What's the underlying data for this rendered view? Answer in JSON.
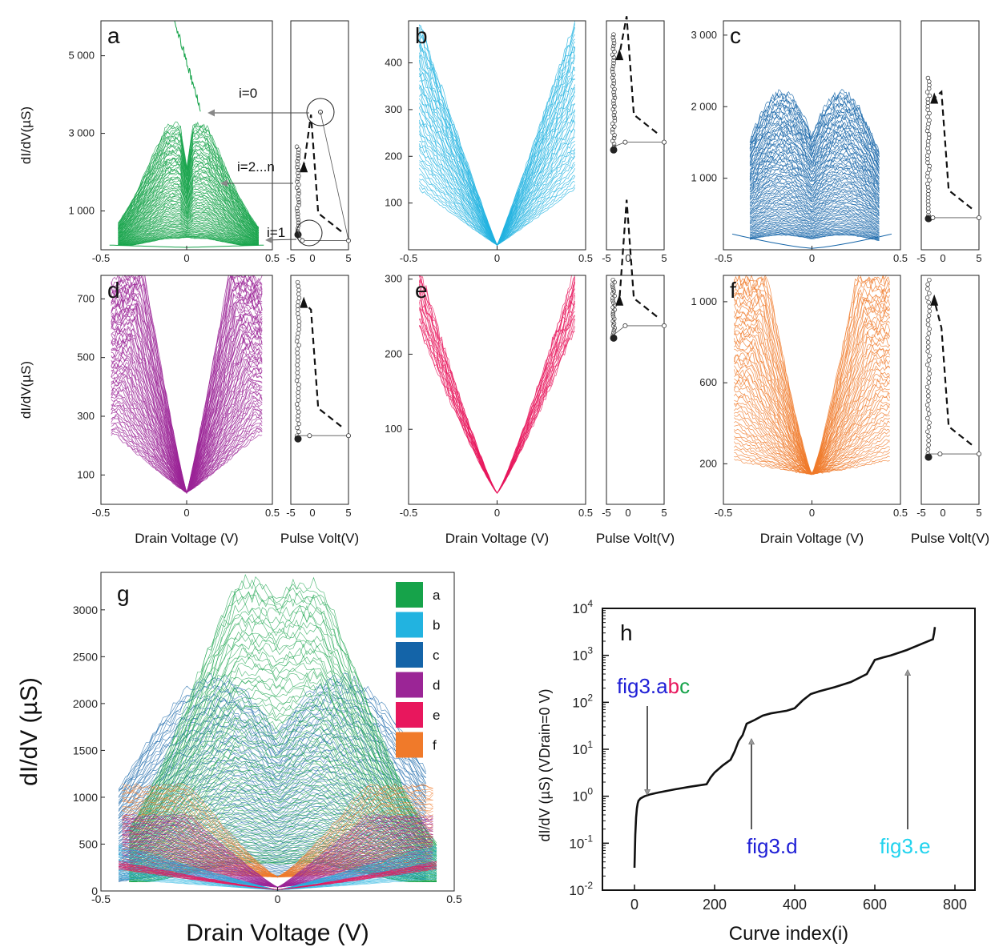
{
  "chart_data": [
    {
      "id": "a",
      "type": "line",
      "panel_label": "a",
      "color": "#16a34a",
      "xlim": [
        -0.5,
        0.5
      ],
      "ylim": [
        0,
        5900
      ],
      "xticks": [
        "-0.5",
        "0",
        "0.5"
      ],
      "yticks": [
        "1 000",
        "3 000",
        "5 000"
      ],
      "ylabel": "dI/dV(µS)",
      "xlabel": "",
      "series_summary": {
        "curves": "i=1 ... n",
        "peak_y": 3300,
        "i0_trace_y": [
          5900,
          3600
        ]
      },
      "annotations": [
        "i=0",
        "i=2...n",
        "i=1"
      ],
      "inset": {
        "xlim": [
          -3,
          5
        ],
        "xticks": [
          "-5",
          "0",
          "5"
        ],
        "xlabel": ""
      }
    },
    {
      "id": "b",
      "type": "line",
      "panel_label": "b",
      "color": "#22b3e0",
      "xlim": [
        -0.5,
        0.5
      ],
      "ylim": [
        0,
        490
      ],
      "xticks": [
        "-0.5",
        "0",
        "0.5"
      ],
      "yticks": [
        "100",
        "200",
        "300",
        "400"
      ],
      "ylabel": "",
      "xlabel": "",
      "series_summary": {
        "peak_y": 490
      },
      "inset": {
        "xlim": [
          -3,
          5
        ],
        "xticks": [
          "-5",
          "0",
          "5"
        ],
        "xlabel": ""
      }
    },
    {
      "id": "c",
      "type": "line",
      "panel_label": "c",
      "color": "#1464a8",
      "xlim": [
        -0.5,
        0.5
      ],
      "ylim": [
        0,
        3200
      ],
      "xticks": [
        "-0.5",
        "0",
        "0.5"
      ],
      "yticks": [
        "1 000",
        "2 000",
        "3 000"
      ],
      "ylabel": "",
      "xlabel": "",
      "series_summary": {
        "peak_y": 3200
      },
      "inset": {
        "xlim": [
          -3,
          5
        ],
        "xticks": [
          "-5",
          "0",
          "5"
        ],
        "xlabel": ""
      }
    },
    {
      "id": "d",
      "type": "line",
      "panel_label": "d",
      "color": "#9b2596",
      "xlim": [
        -0.5,
        0.5
      ],
      "ylim": [
        0,
        780
      ],
      "xticks": [
        "-0.5",
        "0",
        "0.5"
      ],
      "yticks": [
        "100",
        "300",
        "500",
        "700"
      ],
      "ylabel": "dI/dV(µS)",
      "xlabel": "Drain Voltage (V)",
      "series_summary": {
        "peak_y": 780
      },
      "inset": {
        "xlim": [
          -3,
          5
        ],
        "xticks": [
          "-5",
          "0",
          "5"
        ],
        "xlabel": "Pulse Volt(V)"
      }
    },
    {
      "id": "e",
      "type": "line",
      "panel_label": "e",
      "color": "#e8175d",
      "xlim": [
        -0.5,
        0.5
      ],
      "ylim": [
        0,
        305
      ],
      "xticks": [
        "-0.5",
        "0",
        "0.5"
      ],
      "yticks": [
        "100",
        "200",
        "300"
      ],
      "ylabel": "",
      "xlabel": "Drain Voltage (V)",
      "series_summary": {
        "peak_y": 305
      },
      "inset": {
        "xlim": [
          -3,
          5
        ],
        "xticks": [
          "-5",
          "0",
          "5"
        ],
        "xlabel": "Pulse Volt(V)"
      }
    },
    {
      "id": "f",
      "type": "line",
      "panel_label": "f",
      "color": "#f07a2a",
      "xlim": [
        -0.5,
        0.5
      ],
      "ylim": [
        0,
        1130
      ],
      "xticks": [
        "-0.5",
        "0",
        "0.5"
      ],
      "yticks": [
        "200",
        "600",
        "1 000"
      ],
      "ylabel": "",
      "xlabel": "Drain Voltage (V)",
      "series_summary": {
        "peak_y": 1130
      },
      "inset": {
        "xlim": [
          -3,
          5
        ],
        "xticks": [
          "-5",
          "0",
          "5"
        ],
        "xlabel": "Pulse Volt(V)"
      }
    },
    {
      "id": "g",
      "type": "line",
      "panel_label": "g",
      "xlim": [
        -0.5,
        0.5
      ],
      "ylim": [
        0,
        3400
      ],
      "xticks": [
        "-0.5",
        "0",
        "0.5"
      ],
      "yticks": [
        "0",
        "500",
        "1000",
        "1500",
        "2000",
        "2500",
        "3000"
      ],
      "ylabel": "dI/dV (µS)",
      "xlabel": "Drain Voltage (V)",
      "legend": [
        {
          "name": "a",
          "color": "#16a34a"
        },
        {
          "name": "b",
          "color": "#22b3e0"
        },
        {
          "name": "c",
          "color": "#1464a8"
        },
        {
          "name": "d",
          "color": "#9b2596"
        },
        {
          "name": "e",
          "color": "#e8175d"
        },
        {
          "name": "f",
          "color": "#f07a2a"
        }
      ],
      "legend_position": "top-right"
    },
    {
      "id": "h",
      "type": "line",
      "panel_label": "h",
      "xlim": [
        -80,
        850
      ],
      "ylim": [
        0.01,
        10000
      ],
      "yscale": "log",
      "xticks": [
        "0",
        "200",
        "400",
        "600",
        "800"
      ],
      "yticks": [
        {
          "base": "10",
          "exp": "-2"
        },
        {
          "base": "10",
          "exp": "-1"
        },
        {
          "base": "10",
          "exp": "0"
        },
        {
          "base": "10",
          "exp": "1"
        },
        {
          "base": "10",
          "exp": "2"
        },
        {
          "base": "10",
          "exp": "3"
        },
        {
          "base": "10",
          "exp": "4"
        }
      ],
      "ylabel": "dI/dV (µS) (VDrain=0 V)",
      "xlabel": "Curve index(i)",
      "x": [
        0,
        2,
        4,
        6,
        8,
        10,
        15,
        25,
        40,
        60,
        100,
        140,
        180,
        190,
        200,
        220,
        240,
        250,
        260,
        270,
        280,
        300,
        320,
        340,
        360,
        380,
        400,
        420,
        440,
        460,
        500,
        540,
        580,
        600,
        620,
        640,
        680,
        720,
        745,
        748,
        750
      ],
      "y": [
        0.03,
        0.15,
        0.35,
        0.55,
        0.7,
        0.8,
        0.9,
        1.0,
        1.1,
        1.2,
        1.4,
        1.6,
        1.8,
        2.5,
        3.2,
        4.5,
        6,
        9,
        15,
        20,
        35,
        42,
        52,
        58,
        62,
        66,
        75,
        110,
        150,
        170,
        210,
        270,
        400,
        800,
        900,
        1000,
        1300,
        1800,
        2200,
        3000,
        4000
      ],
      "annotations": [
        {
          "parts": [
            {
              "text": "fig3.",
              "color": "#1f1fd6"
            },
            {
              "text": "a",
              "color": "#1f1fd6"
            },
            {
              "text": "b",
              "color": "#e8175d"
            },
            {
              "text": "c",
              "color": "#16a34a"
            }
          ],
          "target_x": 5,
          "target_y": 1.0
        },
        {
          "parts": [
            {
              "text": "fig3.d",
              "color": "#1f1fd6"
            }
          ],
          "target_x": 270,
          "target_y": 20
        },
        {
          "parts": [
            {
              "text": "fig3.e",
              "color": "#22d3ee"
            }
          ],
          "target_x": 670,
          "target_y": 300
        }
      ]
    }
  ]
}
